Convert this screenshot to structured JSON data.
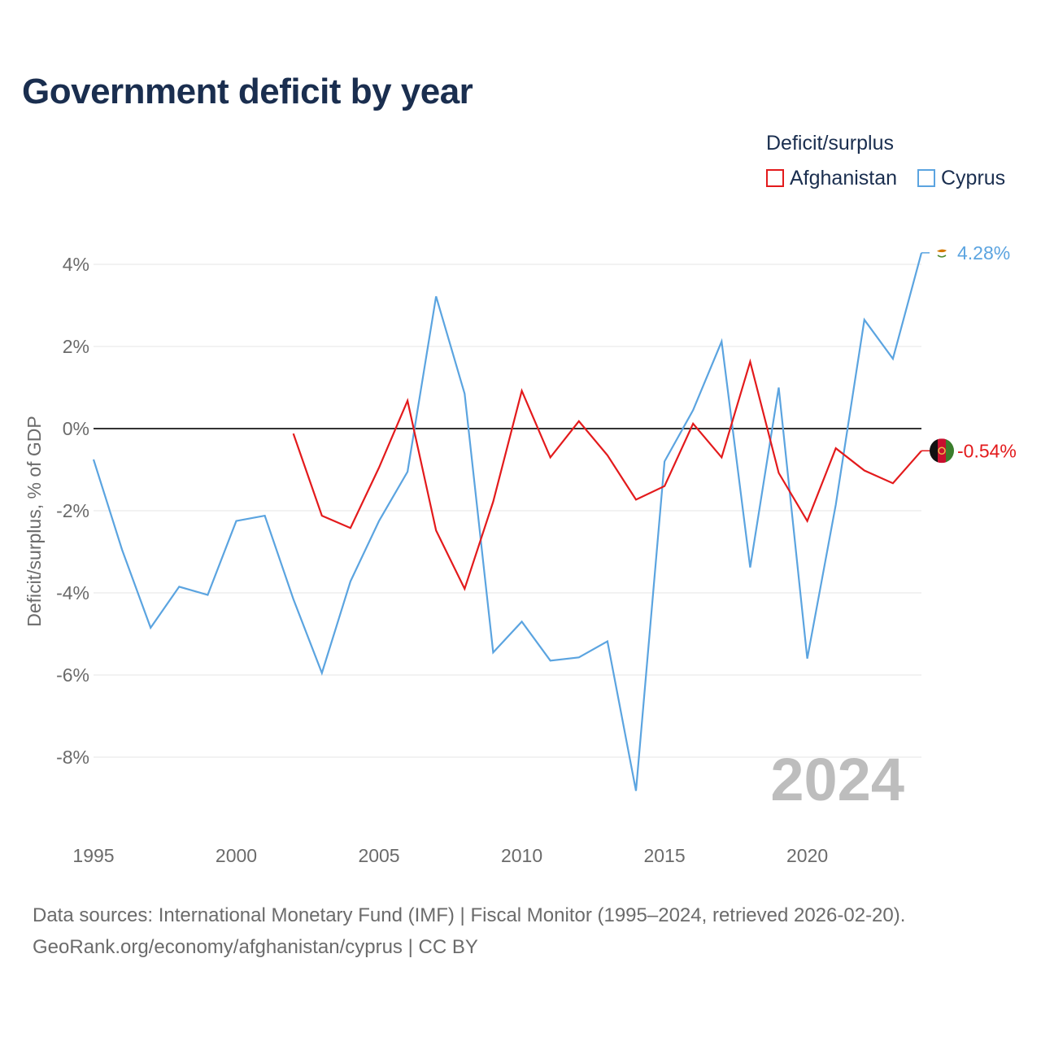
{
  "title": "Government deficit by year",
  "legend": {
    "title": "Deficit/surplus",
    "items": [
      {
        "name": "Afghanistan",
        "color": "#e31a1c"
      },
      {
        "name": "Cyprus",
        "color": "#5ba4e0"
      }
    ]
  },
  "source": {
    "line1": "Data sources: International Monetary Fund (IMF) | Fiscal Monitor (1995–2024, retrieved 2026-02-20).",
    "line2": "GeoRank.org/economy/afghanistan/cyprus | CC BY"
  },
  "chart_data": {
    "type": "line",
    "title": "Government deficit by year",
    "xlabel": "",
    "ylabel": "Deficit/surplus, % of GDP",
    "xlim": [
      1995,
      2024
    ],
    "ylim": [
      -10,
      4.6
    ],
    "x_ticks": [
      1995,
      2000,
      2005,
      2010,
      2015,
      2020
    ],
    "y_ticks": [
      4,
      2,
      0,
      -2,
      -4,
      -6,
      -8
    ],
    "y_tick_labels": [
      "4%",
      "2%",
      "0%",
      "-2%",
      "-4%",
      "-6%",
      "-8%"
    ],
    "grid": true,
    "legend_position": "top-right",
    "year_watermark": "2024",
    "series": [
      {
        "name": "Cyprus",
        "color": "#5ba4e0",
        "end_label": "4.28%",
        "x": [
          1995,
          1996,
          1997,
          1998,
          1999,
          2000,
          2001,
          2002,
          2003,
          2004,
          2005,
          2006,
          2007,
          2008,
          2009,
          2010,
          2011,
          2012,
          2013,
          2014,
          2015,
          2016,
          2017,
          2018,
          2019,
          2020,
          2021,
          2022,
          2023,
          2024
        ],
        "values": [
          -0.75,
          -2.95,
          -4.85,
          -3.85,
          -4.05,
          -2.25,
          -2.12,
          -4.15,
          -5.95,
          -3.72,
          -2.25,
          -1.05,
          3.22,
          0.85,
          -5.45,
          -4.7,
          -5.65,
          -5.57,
          -5.18,
          -8.82,
          -0.8,
          0.45,
          2.12,
          -3.38,
          1.0,
          -5.6,
          -1.85,
          2.65,
          1.7,
          4.28
        ]
      },
      {
        "name": "Afghanistan",
        "color": "#e31a1c",
        "end_label": "-0.54%",
        "x": [
          2002,
          2003,
          2004,
          2005,
          2006,
          2007,
          2008,
          2009,
          2010,
          2011,
          2012,
          2013,
          2014,
          2015,
          2016,
          2017,
          2018,
          2019,
          2020,
          2021,
          2022,
          2023,
          2024
        ],
        "values": [
          -0.12,
          -2.12,
          -2.42,
          -0.95,
          0.68,
          -2.48,
          -3.9,
          -1.78,
          0.92,
          -0.7,
          0.18,
          -0.65,
          -1.73,
          -1.4,
          0.12,
          -0.7,
          1.63,
          -1.08,
          -2.25,
          -0.48,
          -1.02,
          -1.33,
          -0.54
        ]
      }
    ]
  }
}
